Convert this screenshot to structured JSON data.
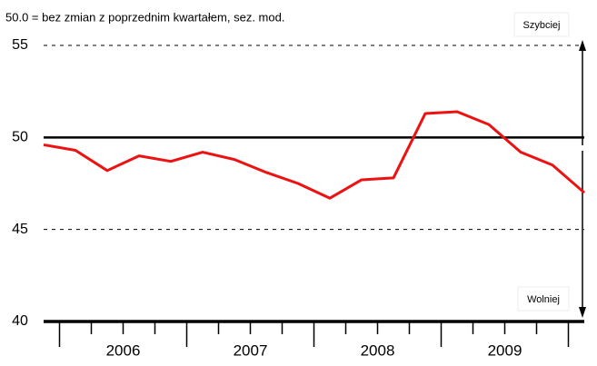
{
  "chart_data": {
    "type": "line",
    "subtitle": "50.0 = bez zmian z poprzednim kwartałem, sez. mod.",
    "annotations": [
      "Szybciej",
      "Wolniej"
    ],
    "x": [
      2005.875,
      2006.125,
      2006.375,
      2006.625,
      2006.875,
      2007.125,
      2007.375,
      2007.625,
      2007.875,
      2008.125,
      2008.375,
      2008.625,
      2008.875,
      2009.125,
      2009.375,
      2009.625,
      2009.875,
      2010.125
    ],
    "series": [
      {
        "color": "#ee1111",
        "values": [
          49.6,
          49.3,
          48.2,
          49.0,
          48.7,
          49.2,
          48.8,
          48.1,
          47.5,
          46.7,
          47.7,
          47.8,
          51.3,
          51.4,
          50.7,
          49.2,
          48.5,
          47.0
        ]
      }
    ],
    "xlim": [
      2005.875,
      2010.125
    ],
    "xticks": [
      {
        "value": 2006.5,
        "label": "2006"
      },
      {
        "value": 2007.5,
        "label": "2007"
      },
      {
        "value": 2008.5,
        "label": "2008"
      },
      {
        "value": 2009.5,
        "label": "2009"
      }
    ],
    "xticks_minor": [
      2006,
      2006.25,
      2006.5,
      2006.75,
      2007,
      2007.25,
      2007.5,
      2007.75,
      2008,
      2008.25,
      2008.5,
      2008.75,
      2009,
      2009.25,
      2009.5,
      2009.75,
      2010
    ],
    "ylim": [
      40,
      55
    ],
    "yticks": [
      40,
      45,
      50,
      55
    ],
    "reference_line": 50,
    "dashed_grid": [
      45,
      55
    ]
  }
}
